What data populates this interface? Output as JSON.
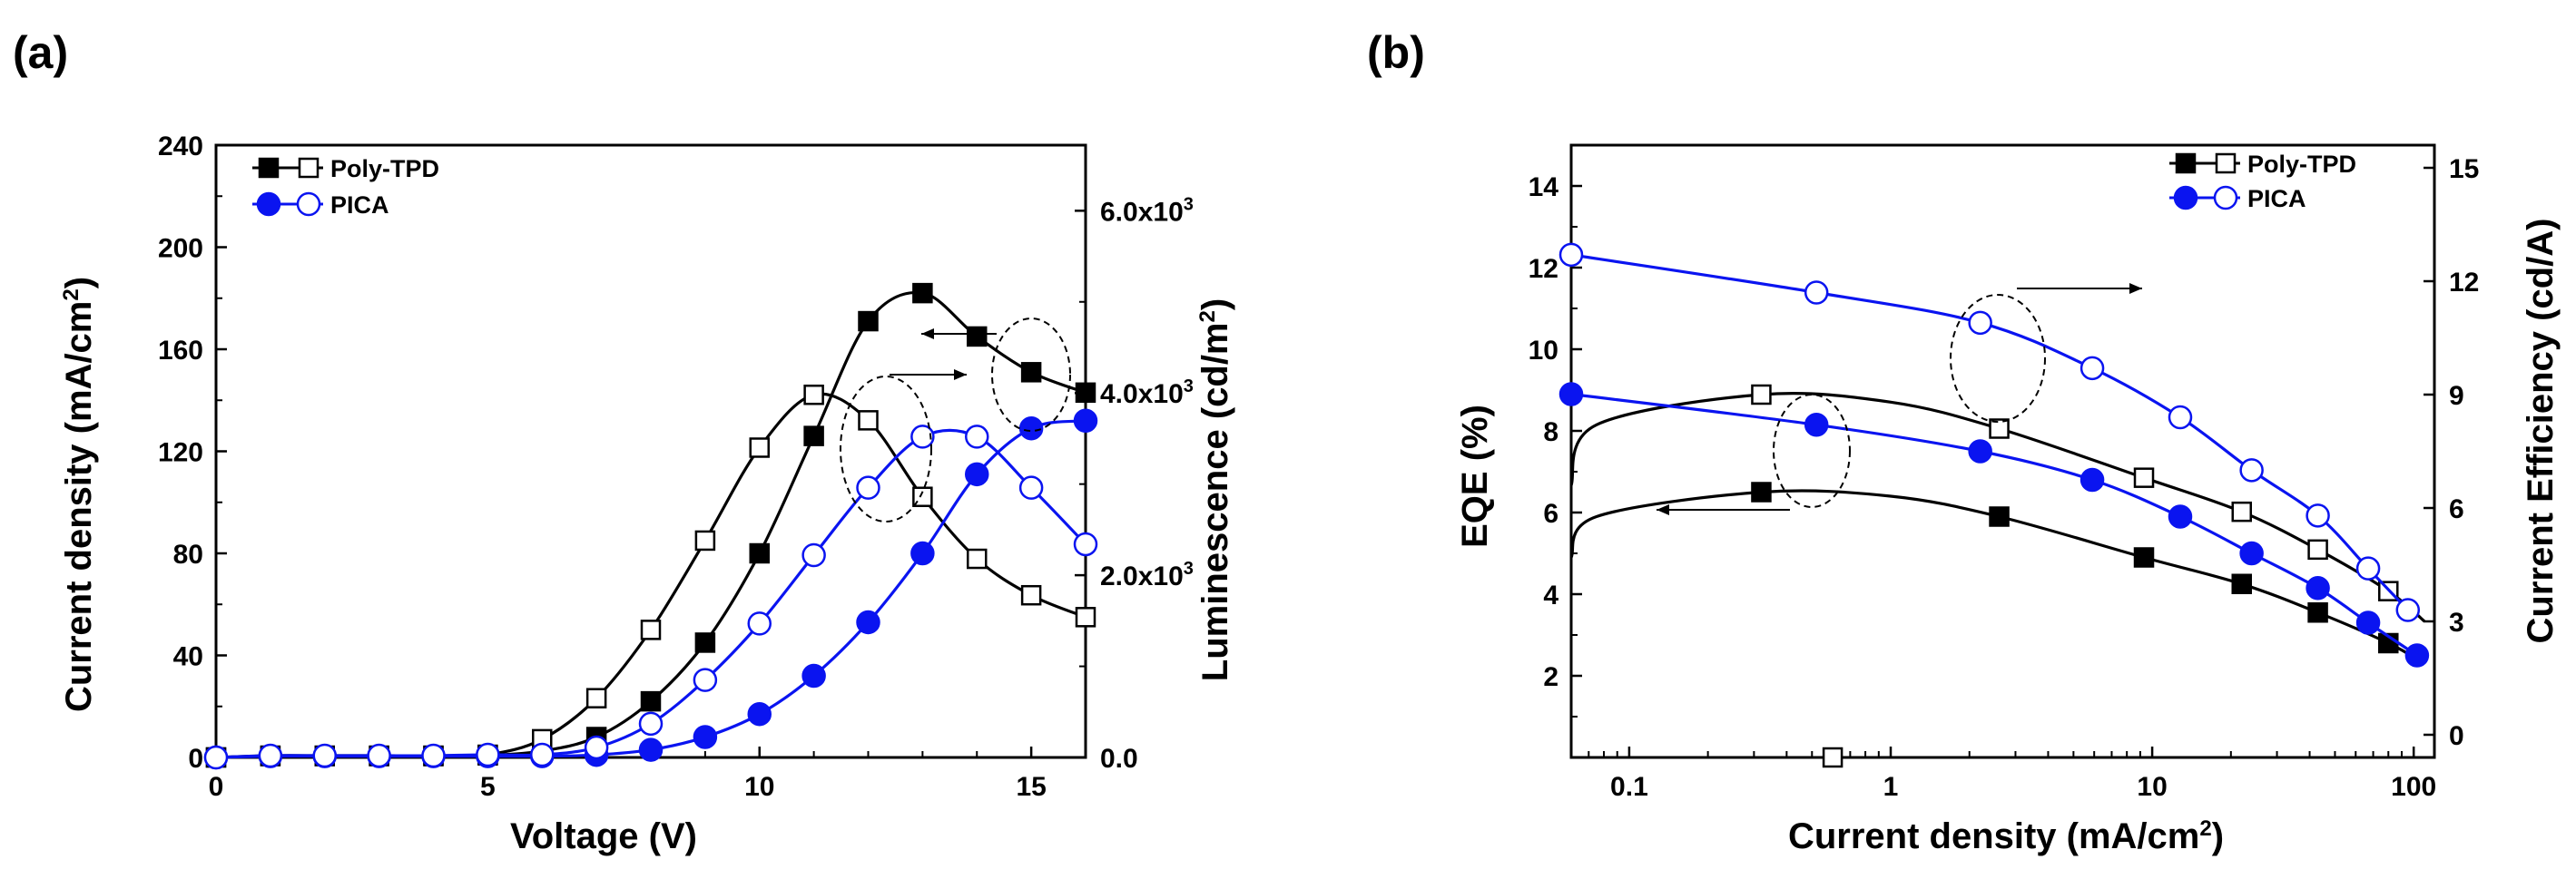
{
  "figure": {
    "colors": {
      "black": "#000000",
      "blue": "#0a14f0"
    },
    "panels": [
      {
        "label": "(a)",
        "title": "",
        "xlabel": "Voltage (V)",
        "ylabel_left": "Current density (mA/cm",
        "ylabel_left_sup": "2",
        "ylabel_left_tail": ")",
        "ylabel_right": "Luminescence (cd/m",
        "ylabel_right_sup": "2",
        "ylabel_right_tail": ")"
      },
      {
        "label": "(b)",
        "title": "",
        "xlabel": "Current density (mA/cm",
        "xlabel_sup": "2",
        "xlabel_tail": ")",
        "ylabel_left": "EQE (%)",
        "ylabel_right": "Current Efficiency (cd/A)"
      }
    ]
  },
  "chart_data": [
    {
      "type": "line",
      "panel": "(a)",
      "xlabel": "Voltage (V)",
      "ylabel": "Current density (mA/cm2)",
      "y2label": "Luminescence (cd/m2)",
      "xlim": [
        0,
        16
      ],
      "ylim": [
        0,
        240
      ],
      "y2lim": [
        0,
        6720
      ],
      "xticks": [
        0,
        5,
        10,
        15
      ],
      "yticks": [
        0,
        40,
        80,
        120,
        160,
        200,
        240
      ],
      "y2ticks": [
        {
          "value": 0,
          "base": "0.0",
          "exp": ""
        },
        {
          "value": 2000,
          "base": "2.0x10",
          "exp": "3"
        },
        {
          "value": 4000,
          "base": "4.0x10",
          "exp": "3"
        },
        {
          "value": 6000,
          "base": "6.0x10",
          "exp": "3"
        }
      ],
      "legend": [
        {
          "label": "Poly-TPD",
          "color": "#000000"
        },
        {
          "label": "PICA",
          "color": "#0a14f0"
        }
      ],
      "series": [
        {
          "name": "Poly-TPD current density",
          "axis": "left",
          "color": "#000000",
          "marker": "square",
          "filled": true,
          "x": [
            0,
            1,
            2,
            3,
            4,
            5,
            6,
            7,
            8,
            9,
            10,
            11,
            12,
            13,
            14,
            15,
            16
          ],
          "y": [
            0,
            0.5,
            0.5,
            0.5,
            0.5,
            0.8,
            2.5,
            8,
            22,
            45,
            80,
            126,
            171,
            182,
            165,
            151,
            143
          ]
        },
        {
          "name": "Poly-TPD luminescence",
          "axis": "right",
          "color": "#000000",
          "marker": "square",
          "filled": false,
          "x": [
            0,
            1,
            2,
            3,
            4,
            5,
            6,
            7,
            8,
            9,
            10,
            11,
            12,
            13,
            14,
            15,
            16
          ],
          "y": [
            0,
            20,
            20,
            20,
            20,
            30,
            200,
            650,
            1400,
            2380,
            3400,
            3980,
            3700,
            2860,
            2180,
            1780,
            1540
          ]
        },
        {
          "name": "PICA current density",
          "axis": "left",
          "color": "#0a14f0",
          "marker": "circle",
          "filled": true,
          "x": [
            0,
            1,
            2,
            3,
            4,
            5,
            6,
            7,
            8,
            9,
            10,
            11,
            12,
            13,
            14,
            15,
            16
          ],
          "y": [
            0,
            0.5,
            0.5,
            0.5,
            0.5,
            0.5,
            0.5,
            1,
            3,
            8,
            17,
            32,
            53,
            80,
            111,
            129,
            132
          ]
        },
        {
          "name": "PICA luminescence",
          "axis": "right",
          "color": "#0a14f0",
          "marker": "circle",
          "filled": false,
          "x": [
            0,
            1,
            2,
            3,
            4,
            5,
            6,
            7,
            8,
            9,
            10,
            11,
            12,
            13,
            14,
            15,
            16
          ],
          "y": [
            0,
            20,
            20,
            20,
            20,
            30,
            30,
            110,
            370,
            850,
            1470,
            2220,
            2960,
            3520,
            3520,
            2960,
            2340
          ]
        }
      ],
      "annotations": [
        {
          "type": "ellipse",
          "points_to": "right axis",
          "near": "Voltage 12-13 V"
        },
        {
          "type": "ellipse",
          "points_to": "left axis",
          "near": "Voltage 15 V"
        }
      ]
    },
    {
      "type": "line",
      "panel": "(b)",
      "xlabel": "Current density (mA/cm2)",
      "ylabel": "EQE (%)",
      "y2label": "Current Efficiency (cd/A)",
      "xscale": "log",
      "xlim": [
        0.06,
        120
      ],
      "ylim": [
        0,
        15
      ],
      "y2lim": [
        -0.6,
        15.6
      ],
      "xticks": [
        {
          "value": 0.1,
          "label": "0.1"
        },
        {
          "value": 1,
          "label": "1"
        },
        {
          "value": 10,
          "label": "10"
        },
        {
          "value": 100,
          "label": "100"
        }
      ],
      "yticks": [
        2,
        4,
        6,
        8,
        10,
        12,
        14
      ],
      "y2ticks": [
        0,
        3,
        6,
        9,
        12,
        15
      ],
      "legend": [
        {
          "label": "Poly-TPD",
          "color": "#000000"
        },
        {
          "label": "PICA",
          "color": "#0a14f0"
        }
      ],
      "series": [
        {
          "name": "Poly-TPD EQE",
          "axis": "left",
          "color": "#000000",
          "marker": "square",
          "filled": true,
          "x": [
            0.06,
            0.075,
            0.32,
            1.0,
            2.6,
            9.3,
            22,
            43,
            80,
            110
          ],
          "y": [
            4.9,
            5.9,
            6.5,
            6.4,
            5.9,
            4.9,
            4.25,
            3.55,
            2.8,
            2.3
          ],
          "marker_indices": [
            2,
            4,
            5,
            6,
            7,
            8
          ]
        },
        {
          "name": "Poly-TPD current efficiency",
          "axis": "right",
          "color": "#000000",
          "marker": "square",
          "filled": false,
          "x": [
            0.06,
            0.075,
            0.32,
            1.0,
            2.6,
            9.3,
            22,
            43,
            80,
            110
          ],
          "y": [
            6.6,
            8.2,
            9.0,
            8.8,
            8.1,
            6.8,
            5.9,
            4.9,
            3.8,
            3.0
          ],
          "marker_indices": [
            2,
            4,
            5,
            6,
            7,
            8
          ]
        },
        {
          "name": "Poly-TPD stray point",
          "axis": "right",
          "color": "#000000",
          "marker": "square",
          "filled": false,
          "x": [
            0.6
          ],
          "y": [
            -0.6
          ],
          "marker_indices": [
            0
          ]
        },
        {
          "name": "PICA EQE",
          "axis": "left",
          "color": "#0a14f0",
          "marker": "circle",
          "filled": true,
          "x": [
            0.06,
            0.52,
            2.2,
            5.9,
            12.8,
            24,
            43,
            67,
            103
          ],
          "y": [
            8.9,
            8.15,
            7.5,
            6.8,
            5.9,
            5.0,
            4.15,
            3.3,
            2.5
          ],
          "marker_indices": [
            0,
            1,
            2,
            3,
            4,
            5,
            6,
            7,
            8
          ]
        },
        {
          "name": "PICA current efficiency",
          "axis": "right",
          "color": "#0a14f0",
          "marker": "circle",
          "filled": false,
          "x": [
            0.06,
            0.52,
            2.2,
            5.9,
            12.8,
            24,
            43,
            67,
            95
          ],
          "y": [
            12.7,
            11.7,
            10.9,
            9.7,
            8.4,
            7.0,
            5.8,
            4.4,
            3.3
          ],
          "marker_indices": [
            0,
            1,
            2,
            3,
            4,
            5,
            6,
            7,
            8
          ]
        }
      ],
      "annotations": [
        {
          "type": "ellipse",
          "points_to": "right axis",
          "near": "Current density 2-4 mA/cm2"
        },
        {
          "type": "ellipse",
          "points_to": "left axis",
          "near": "Current density 0.5-0.7 mA/cm2"
        }
      ]
    }
  ]
}
